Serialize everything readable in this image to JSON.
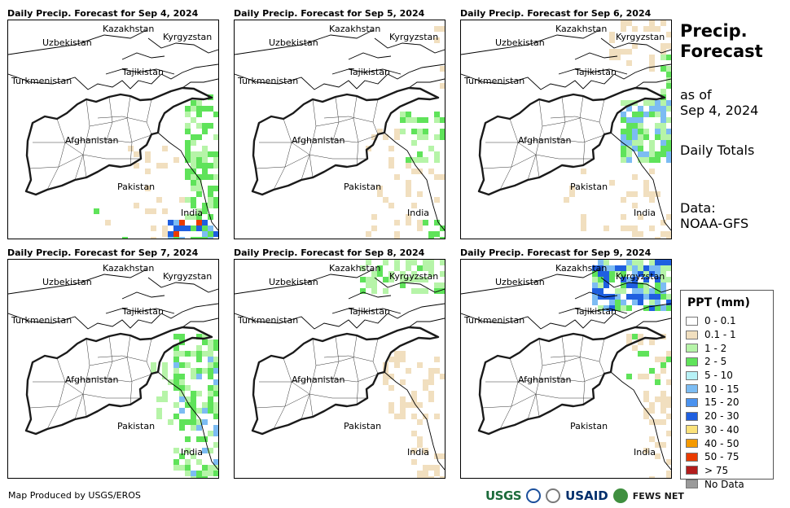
{
  "panels": [
    {
      "title": "Daily Precip. Forecast for Sep 4, 2024"
    },
    {
      "title": "Daily Precip. Forecast for Sep 5, 2024"
    },
    {
      "title": "Daily Precip. Forecast for Sep 6, 2024"
    },
    {
      "title": "Daily Precip. Forecast for Sep 7, 2024"
    },
    {
      "title": "Daily Precip. Forecast for Sep 8, 2024"
    },
    {
      "title": "Daily Precip. Forecast for Sep 9, 2024"
    }
  ],
  "map_labels": {
    "kazakhstan": "Kazakhstan",
    "kyrgyzstan": "Kyrgyzstan",
    "uzbekistan": "Uzbekistan",
    "tajikistan": "Tajikistan",
    "turkmenistan": "Turkmenistan",
    "afghanistan": "Afghanistan",
    "pakistan": "Pakistan",
    "india": "India"
  },
  "side": {
    "title_line1": "Precip.",
    "title_line2": "Forecast",
    "asof_line1": "as of",
    "asof_line2": "Sep 4, 2024",
    "totals": "Daily Totals",
    "data_line1": "Data:",
    "data_line2": "NOAA-GFS"
  },
  "legend": {
    "title": "PPT (mm)",
    "items": [
      {
        "label": "0 - 0.1",
        "color": "#ffffff"
      },
      {
        "label": "0.1 - 1",
        "color": "#f1dfbf"
      },
      {
        "label": "1 - 2",
        "color": "#b6f4a8"
      },
      {
        "label": "2 - 5",
        "color": "#5fe35a"
      },
      {
        "label": "5 - 10",
        "color": "#b7f1f6"
      },
      {
        "label": "10 - 15",
        "color": "#7cbcf3"
      },
      {
        "label": "15 - 20",
        "color": "#4a92ef"
      },
      {
        "label": "20 - 30",
        "color": "#1f5fe0"
      },
      {
        "label": "30 - 40",
        "color": "#fbe27a"
      },
      {
        "label": "40 - 50",
        "color": "#f59a00"
      },
      {
        "label": "50 - 75",
        "color": "#ea3b00"
      },
      {
        "label": "> 75",
        "color": "#b21c1c"
      },
      {
        "label": "No Data",
        "color": "#9a9a9a"
      }
    ]
  },
  "footer": "Map Produced by USGS/EROS",
  "logos": {
    "usgs": "USGS",
    "usaid": "USAID",
    "fews": "FEWS NET"
  }
}
